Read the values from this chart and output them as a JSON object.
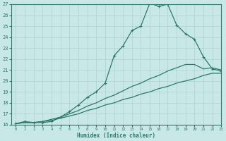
{
  "xlabel": "Humidex (Indice chaleur)",
  "ylabel": "",
  "bg_color": "#c8e8e8",
  "line_color": "#2a7a6a",
  "grid_color": "#b0d0d0",
  "xlim": [
    -0.5,
    23
  ],
  "ylim": [
    16,
    27
  ],
  "xticks": [
    0,
    1,
    2,
    3,
    4,
    5,
    6,
    7,
    8,
    9,
    10,
    11,
    12,
    13,
    14,
    15,
    16,
    17,
    18,
    19,
    20,
    21,
    22,
    23
  ],
  "yticks": [
    16,
    17,
    18,
    19,
    20,
    21,
    22,
    23,
    24,
    25,
    26,
    27
  ],
  "curve1_x": [
    0,
    1,
    2,
    3,
    4,
    5,
    6,
    7,
    8,
    9,
    10,
    11,
    12,
    13,
    14,
    15,
    16,
    17,
    18,
    19,
    20,
    21,
    22,
    23
  ],
  "curve1_y": [
    16.1,
    16.3,
    16.2,
    16.2,
    16.3,
    16.7,
    17.2,
    17.8,
    18.5,
    19.0,
    19.8,
    22.3,
    23.2,
    24.6,
    25.0,
    27.1,
    26.8,
    27.0,
    25.1,
    24.3,
    23.8,
    22.2,
    21.1,
    20.9
  ],
  "curve2_x": [
    0,
    1,
    2,
    3,
    4,
    5,
    6,
    7,
    8,
    9,
    10,
    11,
    12,
    13,
    14,
    15,
    16,
    17,
    18,
    19,
    20,
    21,
    22,
    23
  ],
  "curve2_y": [
    16.1,
    16.2,
    16.2,
    16.3,
    16.5,
    16.7,
    17.0,
    17.3,
    17.7,
    18.0,
    18.4,
    18.7,
    19.1,
    19.5,
    19.8,
    20.2,
    20.5,
    20.9,
    21.2,
    21.5,
    21.5,
    21.1,
    21.2,
    21.0
  ],
  "curve3_x": [
    0,
    1,
    2,
    3,
    4,
    5,
    6,
    7,
    8,
    9,
    10,
    11,
    12,
    13,
    14,
    15,
    16,
    17,
    18,
    19,
    20,
    21,
    22,
    23
  ],
  "curve3_y": [
    16.1,
    16.2,
    16.2,
    16.3,
    16.4,
    16.6,
    16.8,
    17.0,
    17.3,
    17.5,
    17.8,
    18.0,
    18.3,
    18.5,
    18.8,
    19.0,
    19.3,
    19.5,
    19.8,
    20.0,
    20.2,
    20.5,
    20.7,
    20.7
  ]
}
